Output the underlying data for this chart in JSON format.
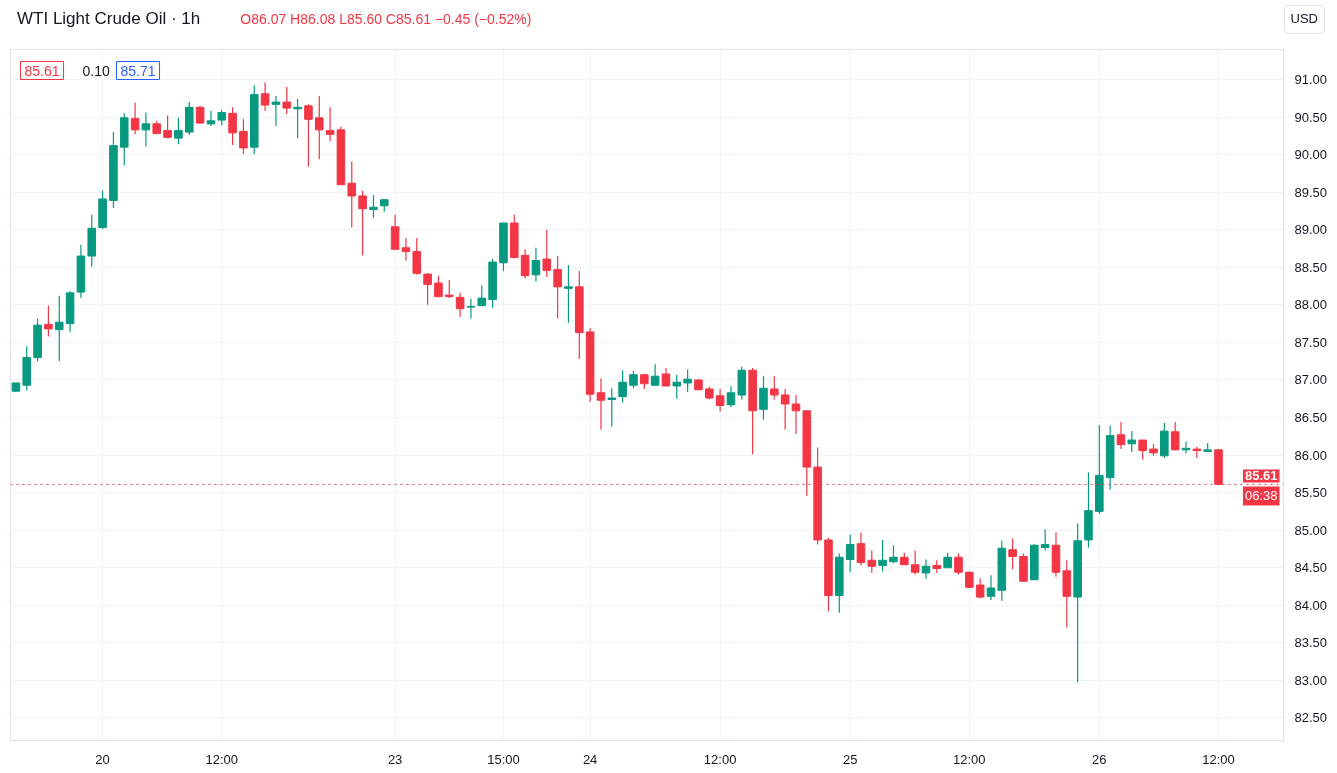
{
  "chart_data": {
    "type": "candlestick",
    "title": "WTI Light Crude Oil · 1h",
    "annotations": [
      "O86.07 H86.08 L85.60 C85.61 −0.45 (−0.52%)",
      "85.61",
      "0.10",
      "85.71",
      "USD",
      "06:38"
    ],
    "categories": [
      null,
      null,
      null,
      null,
      null,
      null,
      null,
      null,
      "20",
      null,
      null,
      null,
      null,
      null,
      null,
      null,
      null,
      null,
      null,
      "12:00",
      null,
      null,
      null,
      null,
      null,
      null,
      null,
      null,
      null,
      null,
      null,
      null,
      null,
      null,
      null,
      "23",
      null,
      null,
      null,
      null,
      null,
      null,
      null,
      null,
      null,
      "15:00",
      null,
      null,
      null,
      null,
      null,
      null,
      null,
      "24",
      null,
      null,
      null,
      null,
      null,
      null,
      null,
      null,
      null,
      null,
      null,
      "12:00",
      null,
      null,
      null,
      null,
      null,
      null,
      null,
      null,
      null,
      null,
      null,
      "25",
      null,
      null,
      null,
      null,
      null,
      null,
      null,
      null,
      null,
      null,
      "12:00",
      null,
      null,
      null,
      null,
      null,
      null,
      null,
      null,
      null,
      null,
      null,
      "26",
      null,
      null,
      null,
      null,
      null,
      null,
      null,
      null,
      null,
      null,
      "12:00"
    ],
    "ohlc": [
      [
        86.85,
        86.96,
        86.85,
        86.96
      ],
      [
        86.93,
        87.45,
        86.86,
        87.3
      ],
      [
        87.3,
        87.82,
        87.25,
        87.73
      ],
      [
        87.74,
        87.99,
        87.58,
        87.68
      ],
      [
        87.67,
        88.12,
        87.25,
        87.77
      ],
      [
        87.75,
        88.18,
        87.64,
        88.16
      ],
      [
        88.17,
        88.8,
        88.09,
        88.65
      ],
      [
        88.65,
        89.2,
        88.51,
        89.02
      ],
      [
        89.03,
        89.52,
        89.01,
        89.41
      ],
      [
        89.39,
        90.3,
        89.29,
        90.12
      ],
      [
        90.1,
        90.55,
        89.86,
        90.49
      ],
      [
        90.48,
        90.69,
        90.27,
        90.33
      ],
      [
        90.33,
        90.56,
        90.11,
        90.41
      ],
      [
        90.41,
        90.45,
        90.28,
        90.28
      ],
      [
        90.32,
        90.52,
        90.22,
        90.23
      ],
      [
        90.22,
        90.49,
        90.14,
        90.32
      ],
      [
        90.3,
        90.7,
        90.26,
        90.63
      ],
      [
        90.63,
        90.65,
        90.42,
        90.42
      ],
      [
        90.41,
        90.58,
        90.38,
        90.45
      ],
      [
        90.46,
        90.59,
        90.39,
        90.56
      ],
      [
        90.55,
        90.63,
        90.13,
        90.29
      ],
      [
        90.31,
        90.47,
        90.01,
        90.09
      ],
      [
        90.1,
        90.92,
        90.01,
        90.8
      ],
      [
        90.81,
        90.96,
        90.58,
        90.66
      ],
      [
        90.67,
        90.78,
        90.38,
        90.7
      ],
      [
        90.7,
        90.9,
        90.54,
        90.62
      ],
      [
        90.61,
        90.74,
        90.22,
        90.63
      ],
      [
        90.65,
        90.67,
        89.84,
        90.47
      ],
      [
        90.49,
        90.78,
        89.94,
        90.33
      ],
      [
        90.32,
        90.63,
        90.18,
        90.27
      ],
      [
        90.33,
        90.37,
        89.6,
        89.6
      ],
      [
        89.62,
        89.91,
        89.03,
        89.45
      ],
      [
        89.45,
        89.52,
        88.66,
        89.28
      ],
      [
        89.27,
        89.46,
        89.16,
        89.3
      ],
      [
        89.32,
        89.4,
        89.24,
        89.4
      ],
      [
        89.04,
        89.2,
        88.74,
        88.74
      ],
      [
        88.76,
        88.89,
        88.59,
        88.71
      ],
      [
        88.71,
        88.89,
        88.4,
        88.42
      ],
      [
        88.41,
        88.42,
        88.0,
        88.27
      ],
      [
        88.29,
        88.39,
        88.1,
        88.11
      ],
      [
        88.13,
        88.33,
        88.09,
        88.11
      ],
      [
        88.1,
        88.16,
        87.84,
        87.95
      ],
      [
        87.97,
        88.08,
        87.82,
        87.98
      ],
      [
        87.99,
        88.26,
        87.98,
        88.09
      ],
      [
        88.07,
        88.61,
        87.96,
        88.57
      ],
      [
        88.56,
        89.09,
        88.45,
        89.09
      ],
      [
        89.09,
        89.2,
        88.62,
        88.63
      ],
      [
        88.66,
        88.74,
        88.35,
        88.39
      ],
      [
        88.4,
        88.76,
        88.31,
        88.59
      ],
      [
        88.61,
        89.0,
        88.37,
        88.46
      ],
      [
        88.47,
        88.65,
        87.82,
        88.24
      ],
      [
        88.22,
        88.53,
        87.76,
        88.24
      ],
      [
        88.24,
        88.45,
        87.28,
        87.63
      ],
      [
        87.64,
        87.69,
        86.71,
        86.81
      ],
      [
        86.83,
        87.02,
        86.34,
        86.73
      ],
      [
        86.74,
        86.89,
        86.38,
        86.76
      ],
      [
        86.78,
        87.13,
        86.7,
        86.97
      ],
      [
        86.93,
        87.12,
        86.89,
        87.07
      ],
      [
        87.07,
        87.08,
        86.88,
        86.95
      ],
      [
        86.93,
        87.21,
        86.93,
        87.05
      ],
      [
        87.08,
        87.16,
        86.92,
        86.92
      ],
      [
        86.92,
        87.07,
        86.75,
        86.97
      ],
      [
        86.96,
        87.14,
        86.84,
        87.01
      ],
      [
        87.0,
        87.01,
        86.87,
        86.87
      ],
      [
        86.88,
        86.91,
        86.74,
        86.76
      ],
      [
        86.79,
        86.88,
        86.58,
        86.66
      ],
      [
        86.67,
        86.92,
        86.64,
        86.83
      ],
      [
        86.8,
        87.18,
        86.74,
        87.13
      ],
      [
        87.13,
        87.16,
        86.01,
        86.59
      ],
      [
        86.61,
        87.05,
        86.47,
        86.89
      ],
      [
        86.88,
        87.05,
        86.74,
        86.8
      ],
      [
        86.8,
        86.88,
        86.34,
        86.68
      ],
      [
        86.68,
        86.8,
        86.28,
        86.59
      ],
      [
        86.59,
        86.59,
        85.46,
        85.84
      ],
      [
        85.84,
        86.1,
        84.81,
        84.87
      ],
      [
        84.87,
        84.9,
        83.92,
        84.13
      ],
      [
        84.13,
        84.69,
        83.9,
        84.64
      ],
      [
        84.61,
        84.94,
        84.44,
        84.81
      ],
      [
        84.82,
        84.97,
        84.53,
        84.57
      ],
      [
        84.6,
        84.73,
        84.43,
        84.52
      ],
      [
        84.53,
        84.87,
        84.45,
        84.6
      ],
      [
        84.58,
        84.8,
        84.56,
        84.64
      ],
      [
        84.64,
        84.7,
        84.54,
        84.54
      ],
      [
        84.54,
        84.73,
        84.41,
        84.44
      ],
      [
        84.43,
        84.61,
        84.35,
        84.52
      ],
      [
        84.53,
        84.6,
        84.43,
        84.49
      ],
      [
        84.5,
        84.7,
        84.5,
        84.64
      ],
      [
        84.64,
        84.69,
        84.41,
        84.44
      ],
      [
        84.44,
        84.45,
        84.23,
        84.24
      ],
      [
        84.27,
        84.36,
        84.09,
        84.11
      ],
      [
        84.12,
        84.4,
        84.07,
        84.23
      ],
      [
        84.2,
        84.86,
        84.06,
        84.76
      ],
      [
        84.74,
        84.89,
        84.48,
        84.65
      ],
      [
        84.65,
        84.69,
        84.32,
        84.32
      ],
      [
        84.34,
        84.81,
        84.34,
        84.8
      ],
      [
        84.77,
        85.01,
        84.73,
        84.81
      ],
      [
        84.8,
        84.97,
        84.38,
        84.44
      ],
      [
        84.46,
        84.6,
        83.7,
        84.12
      ],
      [
        84.11,
        85.09,
        82.98,
        84.86
      ],
      [
        84.87,
        85.77,
        84.77,
        85.26
      ],
      [
        85.25,
        86.4,
        85.22,
        85.73
      ],
      [
        85.7,
        86.39,
        85.54,
        86.26
      ],
      [
        86.27,
        86.44,
        86.08,
        86.14
      ],
      [
        86.15,
        86.32,
        86.04,
        86.2
      ],
      [
        86.2,
        86.2,
        85.94,
        86.06
      ],
      [
        86.08,
        86.15,
        85.99,
        86.03
      ],
      [
        85.99,
        86.43,
        85.96,
        86.32
      ],
      [
        86.31,
        86.44,
        86.07,
        86.07
      ],
      [
        86.07,
        86.18,
        86.02,
        86.09
      ],
      [
        86.08,
        86.11,
        85.96,
        86.06
      ],
      [
        86.05,
        86.16,
        86.04,
        86.07
      ],
      [
        86.07,
        86.08,
        85.6,
        85.61
      ]
    ],
    "colors": [
      "#089981",
      "#089981",
      "#089981",
      "#f23645",
      "#089981",
      "#089981",
      "#089981",
      "#089981",
      "#089981",
      "#089981",
      "#089981",
      "#f23645",
      "#089981",
      "#f23645",
      "#f23645",
      "#089981",
      "#089981",
      "#f23645",
      "#089981",
      "#089981",
      "#f23645",
      "#f23645",
      "#089981",
      "#f23645",
      "#089981",
      "#f23645",
      "#089981",
      "#f23645",
      "#f23645",
      "#f23645",
      "#f23645",
      "#f23645",
      "#f23645",
      "#089981",
      "#089981",
      "#f23645",
      "#f23645",
      "#f23645",
      "#f23645",
      "#f23645",
      "#f23645",
      "#f23645",
      "#089981",
      "#089981",
      "#089981",
      "#089981",
      "#f23645",
      "#f23645",
      "#089981",
      "#f23645",
      "#f23645",
      "#089981",
      "#f23645",
      "#f23645",
      "#f23645",
      "#089981",
      "#089981",
      "#089981",
      "#f23645",
      "#089981",
      "#f23645",
      "#089981",
      "#089981",
      "#f23645",
      "#f23645",
      "#f23645",
      "#089981",
      "#089981",
      "#f23645",
      "#089981",
      "#f23645",
      "#f23645",
      "#f23645",
      "#f23645",
      "#f23645",
      "#f23645",
      "#089981",
      "#089981",
      "#f23645",
      "#f23645",
      "#089981",
      "#089981",
      "#f23645",
      "#f23645",
      "#089981",
      "#f23645",
      "#089981",
      "#f23645",
      "#f23645",
      "#f23645",
      "#089981",
      "#089981",
      "#f23645",
      "#f23645",
      "#089981",
      "#089981",
      "#f23645",
      "#f23645",
      "#089981",
      "#089981",
      "#089981",
      "#089981",
      "#f23645",
      "#089981",
      "#f23645",
      "#f23645",
      "#089981",
      "#f23645",
      "#089981",
      "#f23645",
      "#089981",
      "#f23645"
    ],
    "ylim": [
      82.2,
      91.4
    ],
    "yticks": [
      {
        "value": 82.5,
        "label": "82.50"
      },
      {
        "value": 83,
        "label": "83.00"
      },
      {
        "value": 83.5,
        "label": "83.50"
      },
      {
        "value": 84,
        "label": "84.00"
      },
      {
        "value": 84.5,
        "label": "84.50"
      },
      {
        "value": 85,
        "label": "85.00"
      },
      {
        "value": 85.5,
        "label": "85.50"
      },
      {
        "value": 86,
        "label": "86.00"
      },
      {
        "value": 86.5,
        "label": "86.50"
      },
      {
        "value": 87,
        "label": "87.00"
      },
      {
        "value": 87.5,
        "label": "87.50"
      },
      {
        "value": 88,
        "label": "88.00"
      },
      {
        "value": 88.5,
        "label": "88.50"
      },
      {
        "value": 89,
        "label": "89.00"
      },
      {
        "value": 89.5,
        "label": "89.50"
      },
      {
        "value": 90,
        "label": "90.00"
      },
      {
        "value": 90.5,
        "label": "90.50"
      },
      {
        "value": 91,
        "label": "91.00"
      }
    ],
    "ref_lines": [
      {
        "axis": "y",
        "value": 85.61,
        "label": "85.61",
        "color": "#f23645",
        "line_style": "dotted"
      }
    ],
    "grid": true
  }
}
